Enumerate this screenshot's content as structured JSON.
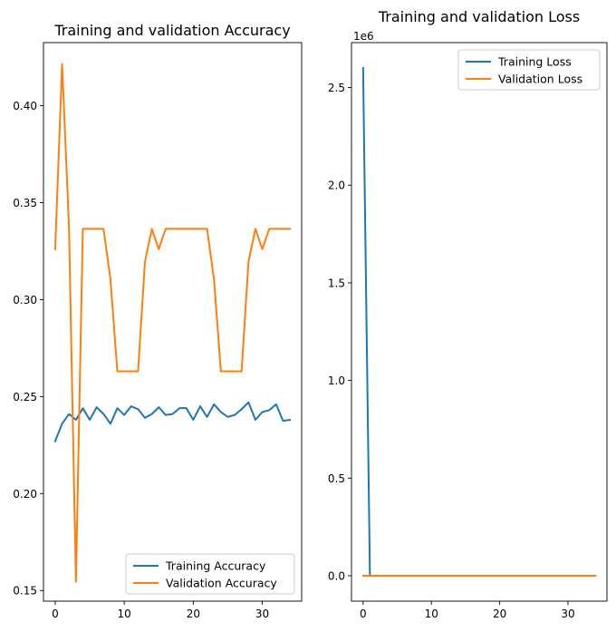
{
  "chart_data": [
    {
      "type": "line",
      "title": "Training and validation Accuracy",
      "xlabel": "",
      "ylabel": "",
      "xlim": [
        -1.7,
        35.7
      ],
      "ylim": [
        0.1445,
        0.4325
      ],
      "xticks": [
        0,
        10,
        20,
        30
      ],
      "xtick_labels": [
        "0",
        "10",
        "20",
        "30"
      ],
      "yticks": [
        0.15,
        0.2,
        0.25,
        0.3,
        0.35,
        0.4
      ],
      "ytick_labels": [
        "0.15",
        "0.20",
        "0.25",
        "0.30",
        "0.35",
        "0.40"
      ],
      "grid": false,
      "legend_position": "lower-right",
      "x": [
        0,
        1,
        2,
        3,
        4,
        5,
        6,
        7,
        8,
        9,
        10,
        11,
        12,
        13,
        14,
        15,
        16,
        17,
        18,
        19,
        20,
        21,
        22,
        23,
        24,
        25,
        26,
        27,
        28,
        29,
        30,
        31,
        32,
        33,
        34
      ],
      "series": [
        {
          "name": "Training Accuracy",
          "color": "#1f77b4",
          "values": [
            0.227,
            0.236,
            0.241,
            0.238,
            0.244,
            0.238,
            0.2445,
            0.241,
            0.236,
            0.244,
            0.2405,
            0.245,
            0.2435,
            0.239,
            0.241,
            0.2445,
            0.2405,
            0.241,
            0.244,
            0.244,
            0.238,
            0.245,
            0.2395,
            0.246,
            0.242,
            0.2395,
            0.2405,
            0.2435,
            0.247,
            0.238,
            0.242,
            0.243,
            0.246,
            0.2375,
            0.238
          ]
        },
        {
          "name": "Validation Accuracy",
          "color": "#ff7f0e",
          "values": [
            0.326,
            0.4215,
            0.337,
            0.1545,
            0.3365,
            0.3365,
            0.3365,
            0.3365,
            0.3105,
            0.263,
            0.263,
            0.263,
            0.263,
            0.3195,
            0.3365,
            0.326,
            0.3365,
            0.3365,
            0.3365,
            0.3365,
            0.3365,
            0.3365,
            0.3365,
            0.3105,
            0.263,
            0.263,
            0.263,
            0.263,
            0.3195,
            0.3365,
            0.326,
            0.3365,
            0.3365,
            0.3365,
            0.3365
          ]
        }
      ]
    },
    {
      "type": "line",
      "title": "Training and validation Loss",
      "xlabel": "",
      "ylabel": "",
      "scale_label": "1e6",
      "xlim": [
        -1.7,
        35.7
      ],
      "ylim": [
        -130000,
        2730000
      ],
      "xticks": [
        0,
        10,
        20,
        30
      ],
      "xtick_labels": [
        "0",
        "10",
        "20",
        "30"
      ],
      "yticks": [
        0,
        500000,
        1000000,
        1500000,
        2000000,
        2500000
      ],
      "ytick_labels": [
        "0.0",
        "0.5",
        "1.0",
        "1.5",
        "2.0",
        "2.5"
      ],
      "grid": false,
      "legend_position": "upper-right",
      "x": [
        0,
        1,
        2,
        3,
        4,
        5,
        6,
        7,
        8,
        9,
        10,
        11,
        12,
        13,
        14,
        15,
        16,
        17,
        18,
        19,
        20,
        21,
        22,
        23,
        24,
        25,
        26,
        27,
        28,
        29,
        30,
        31,
        32,
        33,
        34
      ],
      "series": [
        {
          "name": "Training Loss",
          "color": "#1f77b4",
          "values": [
            2600000,
            1.45,
            1.42,
            1.41,
            1.4,
            1.39,
            1.39,
            1.39,
            1.39,
            1.38,
            1.38,
            1.38,
            1.38,
            1.38,
            1.38,
            1.38,
            1.38,
            1.38,
            1.38,
            1.38,
            1.38,
            1.38,
            1.38,
            1.38,
            1.38,
            1.38,
            1.38,
            1.38,
            1.38,
            1.38,
            1.38,
            1.38,
            1.38,
            1.38,
            1.38
          ]
        },
        {
          "name": "Validation Loss",
          "color": "#ff7f0e",
          "values": [
            1.4,
            1.39,
            1.39,
            1.39,
            1.39,
            1.39,
            1.39,
            1.39,
            1.39,
            1.39,
            1.39,
            1.39,
            1.39,
            1.39,
            1.39,
            1.39,
            1.39,
            1.39,
            1.39,
            1.39,
            1.39,
            1.39,
            1.39,
            1.39,
            1.39,
            1.39,
            1.39,
            1.39,
            1.39,
            1.39,
            1.39,
            1.39,
            1.39,
            1.39,
            1.39
          ]
        }
      ]
    }
  ]
}
